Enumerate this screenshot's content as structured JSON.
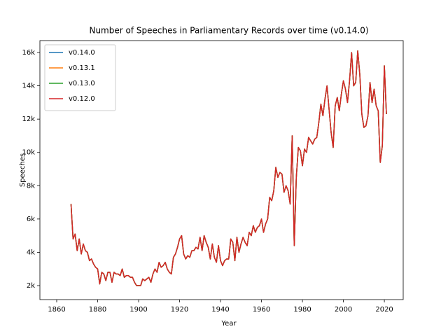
{
  "chart_data": {
    "type": "line",
    "title": "Number of Speeches in Parliamentary Records over time (v0.14.0)",
    "xlabel": "Year",
    "ylabel": "Speeches",
    "x": [
      1867,
      1868,
      1869,
      1870,
      1871,
      1872,
      1873,
      1874,
      1875,
      1876,
      1877,
      1878,
      1879,
      1880,
      1881,
      1882,
      1883,
      1884,
      1885,
      1886,
      1887,
      1888,
      1889,
      1890,
      1891,
      1892,
      1893,
      1894,
      1895,
      1896,
      1897,
      1898,
      1899,
      1900,
      1901,
      1902,
      1903,
      1904,
      1905,
      1906,
      1907,
      1908,
      1909,
      1910,
      1911,
      1912,
      1913,
      1914,
      1915,
      1916,
      1917,
      1918,
      1919,
      1920,
      1921,
      1922,
      1923,
      1924,
      1925,
      1926,
      1927,
      1928,
      1929,
      1930,
      1931,
      1932,
      1933,
      1934,
      1935,
      1936,
      1937,
      1938,
      1939,
      1940,
      1941,
      1942,
      1943,
      1944,
      1945,
      1946,
      1947,
      1948,
      1949,
      1950,
      1951,
      1952,
      1953,
      1954,
      1955,
      1956,
      1957,
      1958,
      1959,
      1960,
      1961,
      1962,
      1963,
      1964,
      1965,
      1966,
      1967,
      1968,
      1969,
      1970,
      1971,
      1972,
      1973,
      1974,
      1975,
      1976,
      1977,
      1978,
      1979,
      1980,
      1981,
      1982,
      1983,
      1984,
      1985,
      1986,
      1987,
      1988,
      1989,
      1990,
      1991,
      1992,
      1993,
      1994,
      1995,
      1996,
      1997,
      1998,
      1999,
      2000,
      2001,
      2002,
      2003,
      2004,
      2005,
      2006,
      2007,
      2008,
      2009,
      2010,
      2011,
      2012,
      2013,
      2014,
      2015,
      2016,
      2017,
      2018,
      2019,
      2020,
      2021
    ],
    "series": [
      {
        "name": "v0.14.0",
        "color": "#1f77b4",
        "values": [
          6900,
          4800,
          5100,
          4100,
          4800,
          3900,
          4500,
          4100,
          4000,
          3500,
          3600,
          3300,
          3100,
          3000,
          2100,
          2800,
          2700,
          2300,
          2800,
          2800,
          2200,
          2800,
          2700,
          2700,
          2600,
          3000,
          2500,
          2600,
          2600,
          2500,
          2500,
          2200,
          2000,
          2000,
          2000,
          2400,
          2300,
          2400,
          2500,
          2200,
          2700,
          3000,
          2800,
          3400,
          3100,
          3200,
          3400,
          3000,
          2800,
          2700,
          3700,
          3900,
          4300,
          4800,
          5000,
          3900,
          3600,
          3800,
          3700,
          4100,
          4100,
          4300,
          4200,
          4900,
          4100,
          5000,
          4600,
          4300,
          3600,
          4500,
          3700,
          3400,
          4400,
          3500,
          3200,
          3500,
          3600,
          3600,
          4800,
          4600,
          3500,
          4900,
          4000,
          4500,
          4900,
          4600,
          4400,
          5200,
          5000,
          5600,
          5200,
          5500,
          5600,
          6000,
          5200,
          5700,
          6000,
          7300,
          7100,
          7700,
          9100,
          8500,
          8800,
          8700,
          7600,
          8000,
          7700,
          6900,
          11000,
          4400,
          8500,
          10300,
          10100,
          9200,
          10200,
          10000,
          10900,
          10700,
          10500,
          10800,
          10900,
          11800,
          12900,
          12200,
          13200,
          14000,
          12600,
          11200,
          10300,
          12800,
          13300,
          12500,
          13500,
          14300,
          13800,
          13000,
          14300,
          16000,
          14000,
          14200,
          16100,
          14700,
          12300,
          11500,
          11600,
          12200,
          14200,
          13000,
          13800,
          12800,
          12500,
          9400,
          10400,
          15200,
          12300
        ]
      },
      {
        "name": "v0.13.1",
        "color": "#ff7f0e",
        "values": [
          6900,
          4800,
          5100,
          4100,
          4800,
          3900,
          4500,
          4100,
          4000,
          3500,
          3600,
          3300,
          3100,
          3000,
          2100,
          2800,
          2700,
          2300,
          2800,
          2800,
          2200,
          2800,
          2700,
          2700,
          2600,
          3000,
          2500,
          2600,
          2600,
          2500,
          2500,
          2200,
          2000,
          2000,
          2000,
          2400,
          2300,
          2400,
          2500,
          2200,
          2700,
          3000,
          2800,
          3400,
          3100,
          3200,
          3400,
          3000,
          2800,
          2700,
          3700,
          3900,
          4300,
          4800,
          5000,
          3900,
          3600,
          3800,
          3700,
          4100,
          4100,
          4300,
          4200,
          4900,
          4100,
          5000,
          4600,
          4300,
          3600,
          4500,
          3700,
          3400,
          4400,
          3500,
          3200,
          3500,
          3600,
          3600,
          4800,
          4600,
          3500,
          4900,
          4000,
          4500,
          4900,
          4600,
          4400,
          5200,
          5000,
          5600,
          5200,
          5500,
          5600,
          6000,
          5200,
          5700,
          6000,
          7300,
          7100,
          7700,
          9100,
          8500,
          8800,
          8700,
          7600,
          8000,
          7700,
          6900,
          11000,
          4400,
          8500,
          10300,
          10100,
          9200,
          10200,
          10000,
          10900,
          10700,
          10500,
          10800,
          10900,
          11800,
          12900,
          12200,
          13200,
          14000,
          12600,
          11200,
          10300,
          12800,
          13300,
          12500,
          13500,
          14300,
          13800,
          13000,
          14300,
          16000,
          14000,
          14200,
          16100,
          14700,
          12300,
          11500,
          11600,
          12200,
          14200,
          13000,
          13800,
          12800,
          12500,
          9400,
          10400,
          15200,
          12300
        ]
      },
      {
        "name": "v0.13.0",
        "color": "#2ca02c",
        "values": [
          6900,
          4800,
          5100,
          4100,
          4800,
          3900,
          4500,
          4100,
          4000,
          3500,
          3600,
          3300,
          3100,
          3000,
          2100,
          2800,
          2700,
          2300,
          2800,
          2800,
          2200,
          2800,
          2700,
          2700,
          2600,
          3000,
          2500,
          2600,
          2600,
          2500,
          2500,
          2200,
          2000,
          2000,
          2000,
          2400,
          2300,
          2400,
          2500,
          2200,
          2700,
          3000,
          2800,
          3400,
          3100,
          3200,
          3400,
          3000,
          2800,
          2700,
          3700,
          3900,
          4300,
          4800,
          5000,
          3900,
          3600,
          3800,
          3700,
          4100,
          4100,
          4300,
          4200,
          4900,
          4100,
          5000,
          4600,
          4300,
          3600,
          4500,
          3700,
          3400,
          4400,
          3500,
          3200,
          3500,
          3600,
          3600,
          4800,
          4600,
          3500,
          4900,
          4000,
          4500,
          4900,
          4600,
          4400,
          5200,
          5000,
          5600,
          5200,
          5500,
          5600,
          6000,
          5200,
          5700,
          6000,
          7300,
          7100,
          7700,
          9100,
          8500,
          8800,
          8700,
          7600,
          8000,
          7700,
          6900,
          11000,
          4400,
          8500,
          10300,
          10100,
          9200,
          10200,
          10000,
          10900,
          10700,
          10500,
          10800,
          10900,
          11800,
          12900,
          12200,
          13200,
          14000,
          12600,
          11200,
          10300,
          12800,
          13300,
          12500,
          13500,
          14300,
          13800,
          13000,
          14300,
          16000,
          14000,
          14200,
          16100,
          14700,
          12300,
          11500,
          11600,
          12200,
          14200,
          13000,
          13800,
          12800,
          12500,
          9400,
          10400,
          15200,
          12300
        ]
      },
      {
        "name": "v0.12.0",
        "color": "#d62728",
        "values": [
          6900,
          4800,
          5100,
          4100,
          4800,
          3900,
          4500,
          4100,
          4000,
          3500,
          3600,
          3300,
          3100,
          3000,
          2100,
          2800,
          2700,
          2300,
          2800,
          2800,
          2200,
          2800,
          2700,
          2700,
          2600,
          3000,
          2500,
          2600,
          2600,
          2500,
          2500,
          2200,
          2000,
          2000,
          2000,
          2400,
          2300,
          2400,
          2500,
          2200,
          2700,
          3000,
          2800,
          3400,
          3100,
          3200,
          3400,
          3000,
          2800,
          2700,
          3700,
          3900,
          4300,
          4800,
          5000,
          3900,
          3600,
          3800,
          3700,
          4100,
          4100,
          4300,
          4200,
          4900,
          4100,
          5000,
          4600,
          4300,
          3600,
          4500,
          3700,
          3400,
          4400,
          3500,
          3200,
          3500,
          3600,
          3600,
          4800,
          4600,
          3500,
          4900,
          4000,
          4500,
          4900,
          4600,
          4400,
          5200,
          5000,
          5600,
          5200,
          5500,
          5600,
          6000,
          5200,
          5700,
          6000,
          7300,
          7100,
          7700,
          9100,
          8500,
          8800,
          8700,
          7600,
          8000,
          7700,
          6900,
          11000,
          4400,
          8500,
          10300,
          10100,
          9200,
          10200,
          10000,
          10900,
          10700,
          10500,
          10800,
          10900,
          11800,
          12900,
          12200,
          13200,
          14000,
          12600,
          11200,
          10300,
          12800,
          13300,
          12500,
          13500,
          14300,
          13800,
          13000,
          14300,
          16000,
          14000,
          14200,
          16100,
          14700,
          12300,
          11500,
          11600,
          12200,
          14200,
          13000,
          13800,
          12800,
          12500,
          9400,
          10400,
          15200,
          12300
        ]
      }
    ],
    "xlim": [
      1851.8,
      2029.2
    ],
    "xticks": [
      1860,
      1880,
      1900,
      1920,
      1940,
      1960,
      1980,
      2000,
      2020
    ],
    "ylim": [
      1160,
      16715
    ],
    "yticks": [
      {
        "value": 2000,
        "label": "2k"
      },
      {
        "value": 4000,
        "label": "4k"
      },
      {
        "value": 6000,
        "label": "6k"
      },
      {
        "value": 8000,
        "label": "8k"
      },
      {
        "value": 10000,
        "label": "10k"
      },
      {
        "value": 12000,
        "label": "12k"
      },
      {
        "value": 14000,
        "label": "14k"
      },
      {
        "value": 16000,
        "label": "16k"
      }
    ],
    "legend": "upper left",
    "grid": false
  }
}
